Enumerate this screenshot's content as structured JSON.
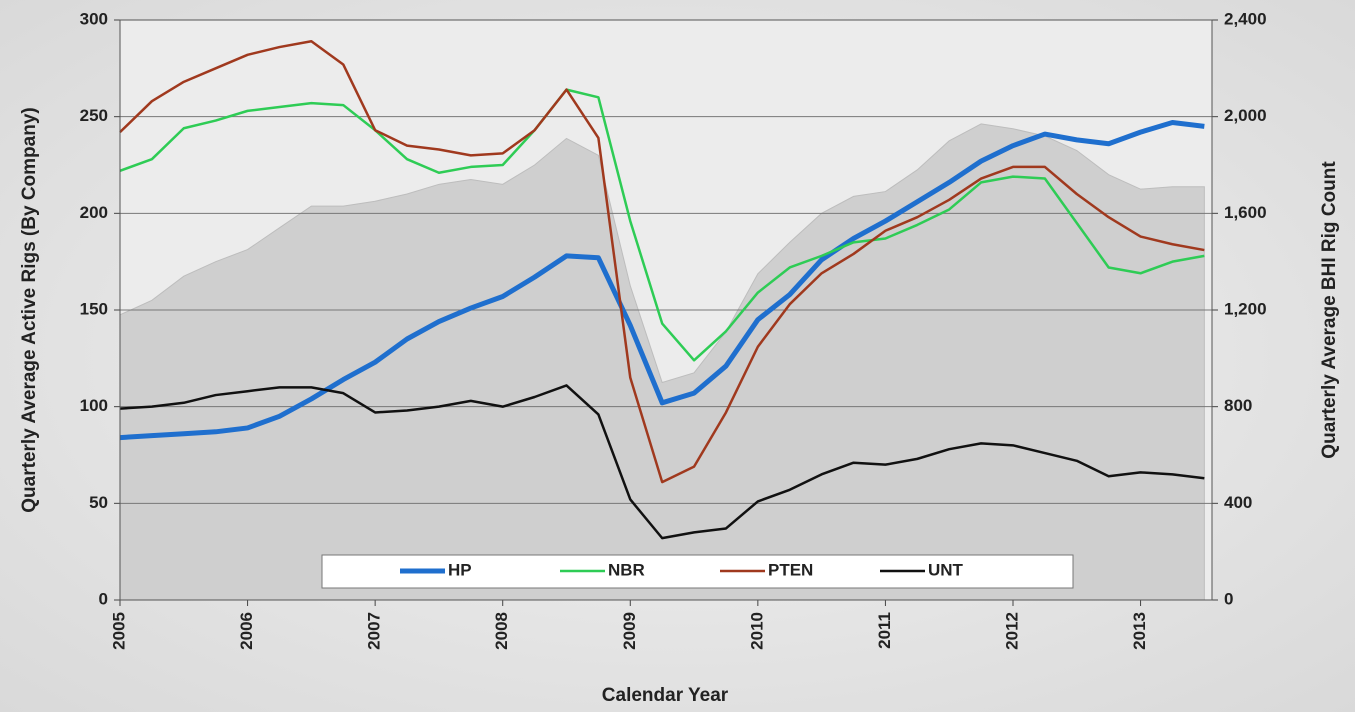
{
  "chart_data": {
    "type": "line",
    "xlabel": "Calendar Year",
    "ylabel": "Quarterly Average Active Rigs (By Company)",
    "y2label": "Quarterly Average BHI Rig Count",
    "x": [
      2005,
      2005.25,
      2005.5,
      2005.75,
      2006,
      2006.25,
      2006.5,
      2006.75,
      2007,
      2007.25,
      2007.5,
      2007.75,
      2008,
      2008.25,
      2008.5,
      2008.75,
      2009,
      2009.25,
      2009.5,
      2009.75,
      2010,
      2010.25,
      2010.5,
      2010.75,
      2011,
      2011.25,
      2011.5,
      2011.75,
      2012,
      2012.25,
      2012.5,
      2012.75,
      2013,
      2013.25,
      2013.5
    ],
    "xlim": [
      2005,
      2013.56
    ],
    "xticks": [
      2005,
      2006,
      2007,
      2008,
      2009,
      2010,
      2011,
      2012,
      2013
    ],
    "ylim": [
      0,
      300
    ],
    "yticks": [
      0,
      50,
      100,
      150,
      200,
      250,
      300
    ],
    "y2lim": [
      0,
      2400
    ],
    "y2ticks": [
      0,
      {
        "value": 400,
        "label": "400"
      },
      {
        "value": 800,
        "label": "800"
      },
      {
        "value": 1200,
        "label": "1,200"
      },
      {
        "value": 1600,
        "label": "1,600"
      },
      {
        "value": 2000,
        "label": "2,000"
      },
      {
        "value": 2400,
        "label": "2,400"
      }
    ],
    "grid": true,
    "legend": "bottom",
    "series": [
      {
        "color": "#cfcfcf",
        "axis": "y2",
        "fill": true,
        "values": [
          1180,
          1240,
          1340,
          1400,
          1450,
          1540,
          1630,
          1630,
          1650,
          1680,
          1720,
          1740,
          1720,
          1800,
          1910,
          1840,
          1300,
          900,
          940,
          1110,
          1350,
          1480,
          1600,
          1670,
          1690,
          1780,
          1900,
          1970,
          1950,
          1920,
          1860,
          1760,
          1700,
          1710,
          1710
        ]
      },
      {
        "name": "HP",
        "color": "#1f6fce",
        "width": 5,
        "values": [
          84,
          85,
          86,
          87,
          89,
          95,
          104,
          114,
          123,
          135,
          144,
          151,
          157,
          167,
          178,
          177,
          142,
          102,
          107,
          121,
          145,
          158,
          176,
          187,
          196,
          206,
          216,
          227,
          235,
          241,
          238,
          236,
          242,
          247,
          245
        ]
      },
      {
        "name": "NBR",
        "color": "#2ecc55",
        "width": 2.5,
        "values": [
          222,
          228,
          244,
          248,
          253,
          255,
          257,
          256,
          243,
          228,
          221,
          224,
          225,
          243,
          264,
          260,
          196,
          143,
          124,
          139,
          159,
          172,
          178,
          185,
          187,
          194,
          202,
          216,
          219,
          218,
          195,
          172,
          169,
          175,
          178
        ]
      },
      {
        "name": "PTEN",
        "color": "#a0391e",
        "width": 2.5,
        "values": [
          242,
          258,
          268,
          275,
          282,
          286,
          289,
          277,
          243,
          235,
          233,
          230,
          231,
          243,
          264,
          239,
          115,
          61,
          69,
          97,
          131,
          153,
          169,
          179,
          191,
          198,
          207,
          218,
          224,
          224,
          210,
          198,
          188,
          184,
          181
        ]
      },
      {
        "name": "UNT",
        "color": "#111111",
        "width": 2.5,
        "values": [
          99,
          100,
          102,
          106,
          108,
          110,
          110,
          107,
          97,
          98,
          100,
          103,
          100,
          105,
          111,
          96,
          52,
          32,
          35,
          37,
          51,
          57,
          65,
          71,
          70,
          73,
          78,
          81,
          80,
          76,
          72,
          64,
          66,
          65,
          63
        ]
      }
    ]
  }
}
